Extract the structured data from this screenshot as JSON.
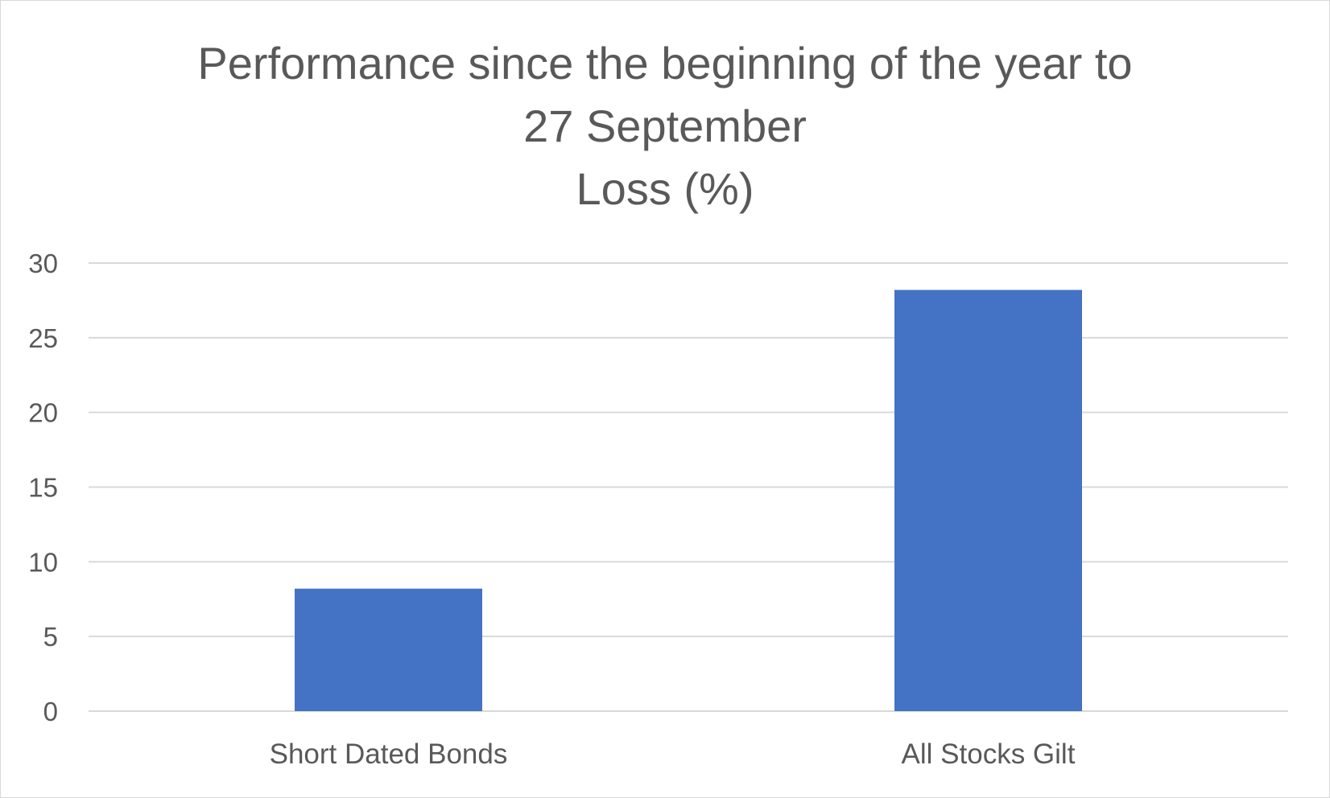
{
  "chart_data": {
    "type": "bar",
    "title_lines": [
      "Performance since the beginning of the year to",
      "27 September",
      "Loss (%)"
    ],
    "categories": [
      "Short Dated Bonds",
      "All Stocks Gilt"
    ],
    "values": [
      8.2,
      28.2
    ],
    "ylim": [
      0,
      30
    ],
    "yticks": [
      "0",
      "5",
      "10",
      "15",
      "20",
      "25",
      "30"
    ],
    "xlabel": "",
    "ylabel": "",
    "grid": true,
    "legend": "none",
    "colors": {
      "bar": "#4472C4",
      "grid": "#d9d9d9",
      "text": "#595959"
    }
  }
}
